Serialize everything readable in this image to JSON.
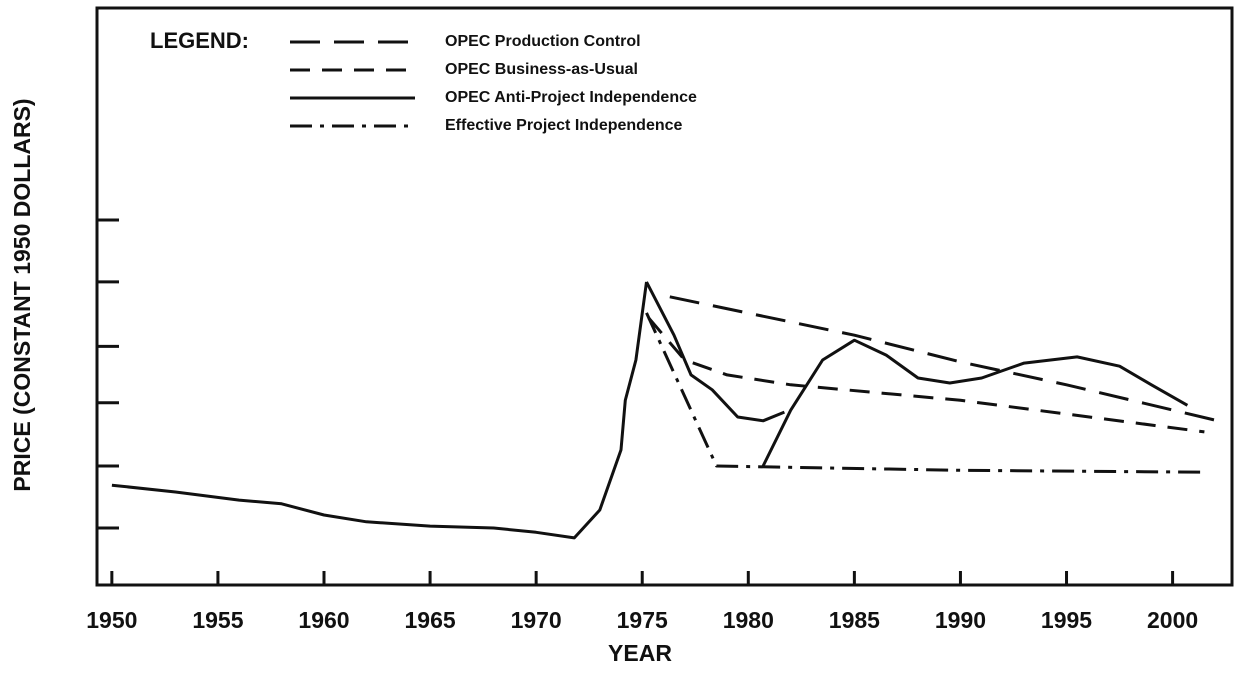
{
  "chart_data": {
    "type": "line",
    "legend_title": "LEGEND:",
    "xlabel": "YEAR",
    "ylabel": "PRICE (CONSTANT 1950 DOLLARS)",
    "xlim": [
      1949.3,
      2002.8
    ],
    "xticks": [
      1950,
      1955,
      1960,
      1965,
      1970,
      1975,
      1980,
      1985,
      1990,
      1995,
      2000
    ],
    "ylim": [
      0,
      9.31
    ],
    "yticks": [
      0.92,
      1.92,
      2.94,
      3.85,
      4.89,
      5.89
    ],
    "legend": "upper left",
    "series": [
      {
        "color": "#111",
        "dash": "solid",
        "x": [
          1950,
          1953,
          1956,
          1958,
          1960,
          1962,
          1965,
          1968,
          1970,
          1971.8,
          1973,
          1974,
          1974.2,
          1974.7,
          1975.2
        ],
        "values": [
          1.61,
          1.5,
          1.37,
          1.31,
          1.13,
          1.02,
          0.95,
          0.92,
          0.85,
          0.76,
          1.21,
          2.18,
          2.98,
          3.63,
          4.89
        ]
      },
      {
        "name": "OPEC Production Control",
        "color": "#111",
        "dash": "long",
        "x": [
          1976.3,
          1985,
          1990,
          1995,
          2002
        ],
        "values": [
          4.65,
          4.03,
          3.6,
          3.23,
          2.66
        ]
      },
      {
        "name": "OPEC Business-as-Usual",
        "color": "#111",
        "dash": "medium",
        "x": [
          1975.3,
          1977,
          1979,
          1982,
          1990,
          2001.5
        ],
        "values": [
          4.31,
          3.63,
          3.39,
          3.23,
          2.98,
          2.47
        ]
      },
      {
        "name": "OPEC Anti-Project Independence",
        "color": "#111",
        "dash": "solid",
        "x": [
          1975.2,
          1976.5,
          1977.3,
          1978.3,
          1979.5,
          1980.7,
          1981.7,
          null,
          1980.7,
          1982,
          1983.5,
          1985,
          1986.5,
          1988,
          1989.5,
          1991,
          1993,
          1995.5,
          1997.5,
          1999,
          2000.7
        ],
        "values": [
          4.89,
          4.03,
          3.39,
          3.15,
          2.71,
          2.65,
          2.79,
          null,
          1.92,
          2.82,
          3.63,
          3.95,
          3.71,
          3.34,
          3.26,
          3.34,
          3.58,
          3.68,
          3.53,
          3.23,
          2.9
        ]
      },
      {
        "name": "Effective Project Independence",
        "color": "#111",
        "dash": "dashdot",
        "x": [
          1975.2,
          1978.5,
          1990,
          2001.5
        ],
        "values": [
          4.39,
          1.92,
          1.85,
          1.82
        ]
      }
    ]
  }
}
